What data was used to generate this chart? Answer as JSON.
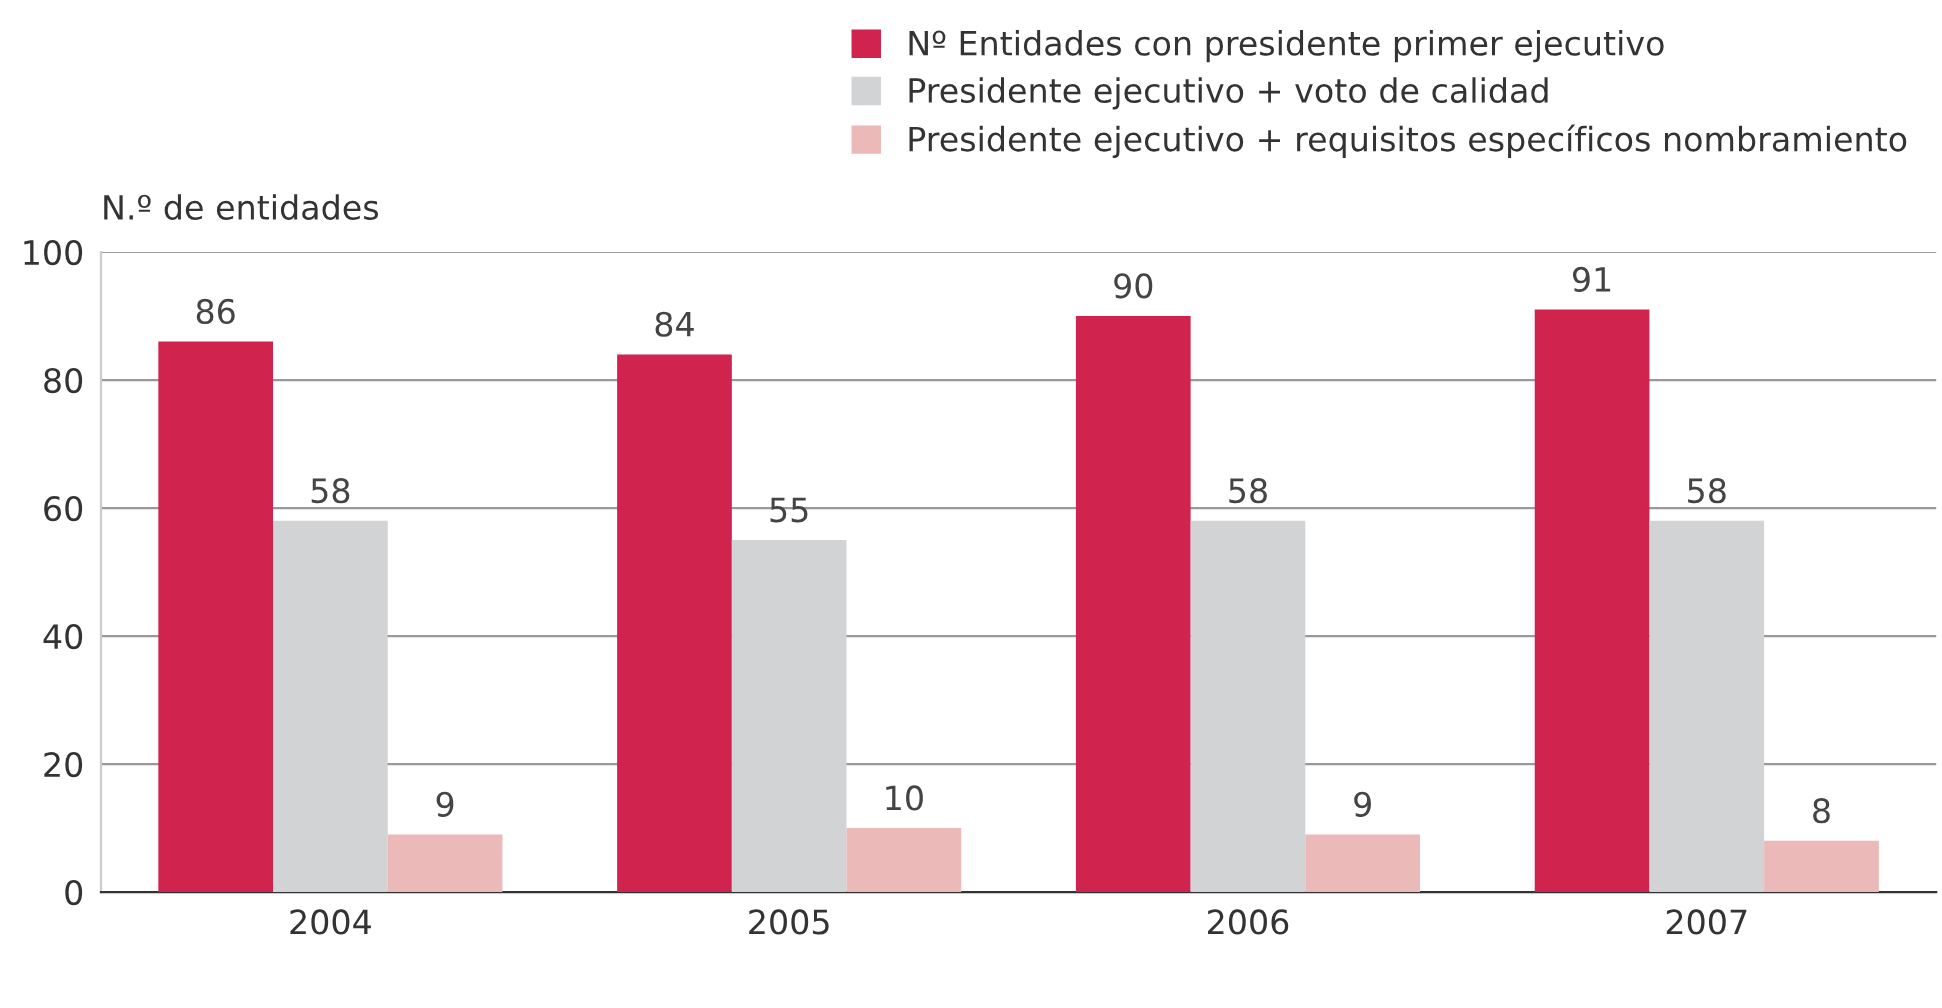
{
  "chart_data": {
    "type": "bar",
    "ylabel": "N.º de entidades",
    "categories": [
      "2004",
      "2005",
      "2006",
      "2007"
    ],
    "series": [
      {
        "name": "Nº Entidades con presidente primer ejecutivo",
        "color": "#d0234d",
        "values": [
          86,
          84,
          90,
          91
        ]
      },
      {
        "name": "Presidente ejecutivo + voto de calidad",
        "color": "#d1d3d4",
        "values": [
          58,
          55,
          58,
          58
        ]
      },
      {
        "name": "Presidente ejecutivo + requisitos específicos nombramiento",
        "color": "#ebb9b7",
        "values": [
          9,
          10,
          9,
          8
        ]
      }
    ],
    "ylim": [
      0,
      100
    ],
    "yticks": [
      0,
      20,
      40,
      60,
      80,
      100
    ],
    "grid": "y",
    "legend": "top right",
    "data_labels": true
  }
}
